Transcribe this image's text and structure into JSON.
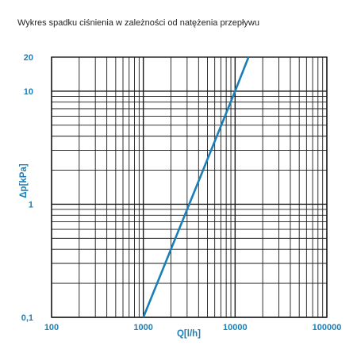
{
  "colors": {
    "accent": "#1a7fb8",
    "grid": "#1a1a1a",
    "line": "#1a7fb8",
    "title": "#222222"
  },
  "chart_data": {
    "type": "line",
    "title": "Wykres spadku ciśnienia w zależności od natężenia przepływu",
    "xlabel": "Q[l/h]",
    "ylabel": "Δp[kPa]",
    "x_scale": "log",
    "y_scale": "log",
    "xlim": [
      100,
      100000
    ],
    "ylim": [
      0.1,
      20
    ],
    "grid": true,
    "x_ticks": [
      {
        "value": 100,
        "label": "100"
      },
      {
        "value": 1000,
        "label": "1000"
      },
      {
        "value": 10000,
        "label": "10000"
      },
      {
        "value": 100000,
        "label": "100000"
      }
    ],
    "y_ticks": [
      {
        "value": 0.1,
        "label": "0,1"
      },
      {
        "value": 1,
        "label": "1"
      },
      {
        "value": 10,
        "label": "10"
      },
      {
        "value": 20,
        "label": "20"
      }
    ],
    "series": [
      {
        "x": [
          1000,
          10000,
          14000
        ],
        "y": [
          0.1,
          10,
          20
        ]
      }
    ]
  }
}
